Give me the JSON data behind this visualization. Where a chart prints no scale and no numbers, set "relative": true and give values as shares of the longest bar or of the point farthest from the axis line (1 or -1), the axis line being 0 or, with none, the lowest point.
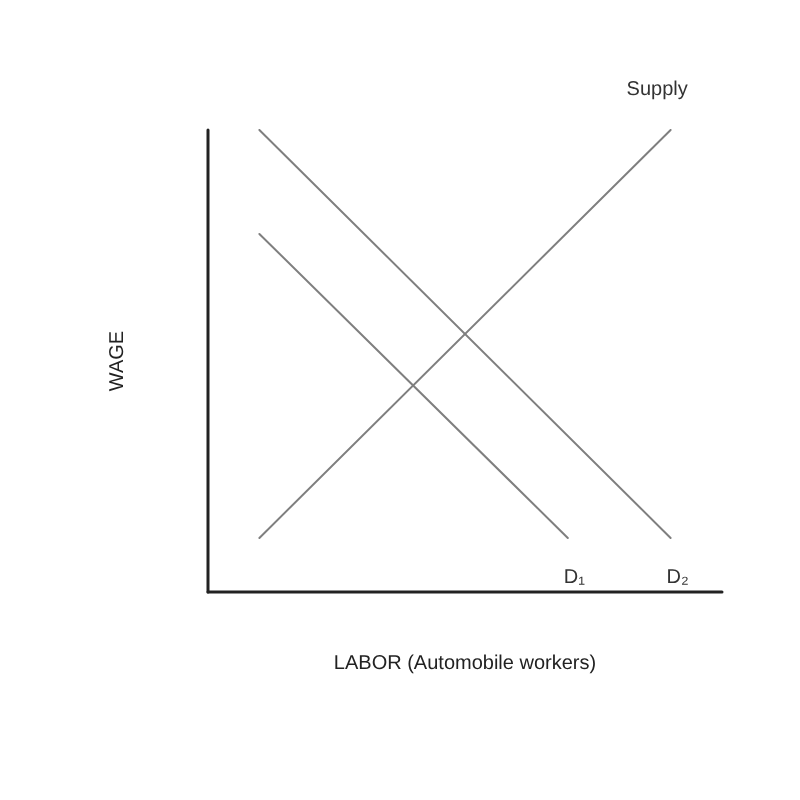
{
  "chart_data": {
    "type": "line",
    "relative": true,
    "xlabel": "LABOR (Automobile workers)",
    "ylabel": "WAGE",
    "categories": [
      null,
      null,
      null,
      null,
      null,
      null,
      null,
      null,
      null,
      null,
      null
    ],
    "series": [
      {
        "name": "Supply",
        "color": "#7f7f7f",
        "values": [
          null,
          0.117,
          null,
          null,
          null,
          null,
          null,
          null,
          null,
          1,
          null
        ]
      },
      {
        "name": "D₁",
        "color": "#7f7f7f",
        "values": [
          null,
          0.775,
          null,
          null,
          null,
          null,
          null,
          0.117,
          null,
          null,
          null
        ]
      },
      {
        "name": "D₂",
        "color": "#7f7f7f",
        "values": [
          null,
          1,
          null,
          null,
          null,
          null,
          null,
          null,
          null,
          0.117,
          null
        ]
      }
    ],
    "legend": false,
    "grid": false,
    "marker": "none",
    "line_style": "solid"
  }
}
